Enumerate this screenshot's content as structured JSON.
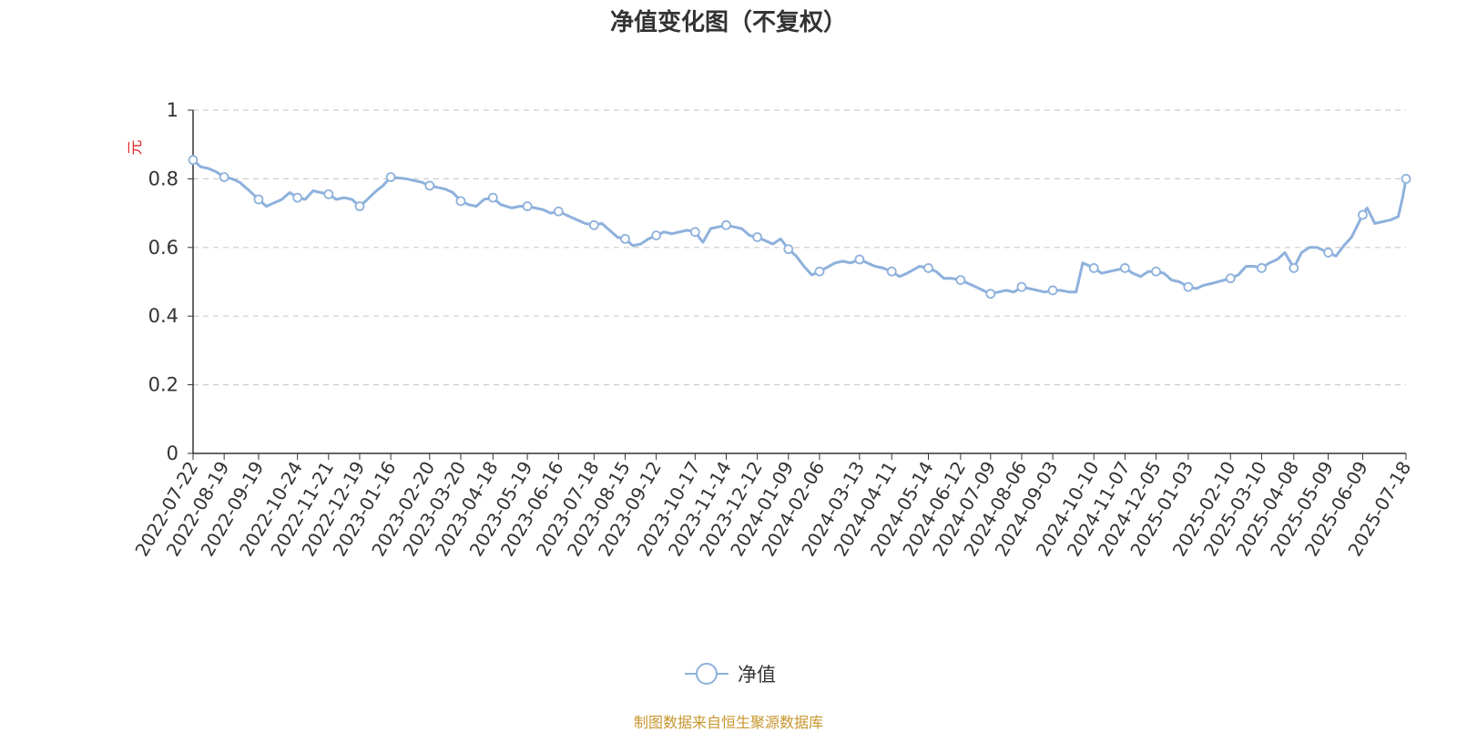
{
  "chart_data": {
    "type": "line",
    "title": "净值变化图（不复权）",
    "ylabel": "元",
    "ylim": [
      0,
      1
    ],
    "yticks": [
      0,
      0.2,
      0.4,
      0.6,
      0.8,
      1
    ],
    "ytick_labels": [
      "0",
      "0.2",
      "0.4",
      "0.6",
      "0.8",
      "1"
    ],
    "x_tick_labels": [
      "2022-07-22",
      "2022-08-19",
      "2022-09-19",
      "2022-10-24",
      "2022-11-21",
      "2022-12-19",
      "2023-01-16",
      "2023-02-20",
      "2023-03-20",
      "2023-04-18",
      "2023-05-19",
      "2023-06-16",
      "2023-07-18",
      "2023-08-15",
      "2023-09-12",
      "2023-10-17",
      "2023-11-14",
      "2023-12-12",
      "2024-01-09",
      "2024-02-06",
      "2024-03-13",
      "2024-04-11",
      "2024-05-14",
      "2024-06-12",
      "2024-07-09",
      "2024-08-06",
      "2024-09-03",
      "2024-10-10",
      "2024-11-07",
      "2024-12-05",
      "2025-01-03",
      "2025-02-10",
      "2025-03-10",
      "2025-04-08",
      "2025-05-09",
      "2025-06-09",
      "2025-07-18"
    ],
    "grid": true,
    "legend_position": "bottom-center",
    "line_color": "#8eb1dc",
    "series": [
      {
        "name": "净值",
        "points": [
          [
            "2022-07-22",
            0.855
          ],
          [
            "2022-07-29",
            0.835
          ],
          [
            "2022-08-05",
            0.83
          ],
          [
            "2022-08-12",
            0.82
          ],
          [
            "2022-08-19",
            0.805
          ],
          [
            "2022-08-26",
            0.8
          ],
          [
            "2022-09-02",
            0.79
          ],
          [
            "2022-09-09",
            0.77
          ],
          [
            "2022-09-19",
            0.74
          ],
          [
            "2022-09-26",
            0.72
          ],
          [
            "2022-10-10",
            0.74
          ],
          [
            "2022-10-17",
            0.76
          ],
          [
            "2022-10-24",
            0.745
          ],
          [
            "2022-10-31",
            0.74
          ],
          [
            "2022-11-07",
            0.765
          ],
          [
            "2022-11-14",
            0.76
          ],
          [
            "2022-11-21",
            0.755
          ],
          [
            "2022-11-28",
            0.74
          ],
          [
            "2022-12-05",
            0.745
          ],
          [
            "2022-12-12",
            0.74
          ],
          [
            "2022-12-19",
            0.72
          ],
          [
            "2022-12-26",
            0.74
          ],
          [
            "2023-01-03",
            0.765
          ],
          [
            "2023-01-09",
            0.78
          ],
          [
            "2023-01-16",
            0.805
          ],
          [
            "2023-01-30",
            0.8
          ],
          [
            "2023-02-06",
            0.795
          ],
          [
            "2023-02-13",
            0.79
          ],
          [
            "2023-02-20",
            0.78
          ],
          [
            "2023-02-27",
            0.775
          ],
          [
            "2023-03-06",
            0.77
          ],
          [
            "2023-03-13",
            0.76
          ],
          [
            "2023-03-20",
            0.735
          ],
          [
            "2023-03-27",
            0.725
          ],
          [
            "2023-04-03",
            0.72
          ],
          [
            "2023-04-10",
            0.74
          ],
          [
            "2023-04-18",
            0.745
          ],
          [
            "2023-04-25",
            0.725
          ],
          [
            "2023-05-05",
            0.715
          ],
          [
            "2023-05-12",
            0.72
          ],
          [
            "2023-05-19",
            0.72
          ],
          [
            "2023-05-26",
            0.715
          ],
          [
            "2023-06-02",
            0.71
          ],
          [
            "2023-06-09",
            0.7
          ],
          [
            "2023-06-16",
            0.705
          ],
          [
            "2023-06-26",
            0.69
          ],
          [
            "2023-07-03",
            0.68
          ],
          [
            "2023-07-10",
            0.67
          ],
          [
            "2023-07-18",
            0.665
          ],
          [
            "2023-07-25",
            0.67
          ],
          [
            "2023-08-01",
            0.65
          ],
          [
            "2023-08-08",
            0.63
          ],
          [
            "2023-08-15",
            0.625
          ],
          [
            "2023-08-22",
            0.605
          ],
          [
            "2023-08-29",
            0.61
          ],
          [
            "2023-09-05",
            0.625
          ],
          [
            "2023-09-12",
            0.635
          ],
          [
            "2023-09-19",
            0.645
          ],
          [
            "2023-09-26",
            0.64
          ],
          [
            "2023-10-10",
            0.65
          ],
          [
            "2023-10-17",
            0.645
          ],
          [
            "2023-10-24",
            0.615
          ],
          [
            "2023-10-31",
            0.655
          ],
          [
            "2023-11-07",
            0.66
          ],
          [
            "2023-11-14",
            0.665
          ],
          [
            "2023-11-21",
            0.66
          ],
          [
            "2023-11-28",
            0.655
          ],
          [
            "2023-12-05",
            0.635
          ],
          [
            "2023-12-12",
            0.63
          ],
          [
            "2023-12-19",
            0.62
          ],
          [
            "2023-12-26",
            0.61
          ],
          [
            "2024-01-02",
            0.625
          ],
          [
            "2024-01-09",
            0.595
          ],
          [
            "2024-01-16",
            0.575
          ],
          [
            "2024-01-23",
            0.545
          ],
          [
            "2024-01-30",
            0.52
          ],
          [
            "2024-02-06",
            0.53
          ],
          [
            "2024-02-20",
            0.555
          ],
          [
            "2024-02-27",
            0.56
          ],
          [
            "2024-03-05",
            0.555
          ],
          [
            "2024-03-13",
            0.565
          ],
          [
            "2024-03-20",
            0.555
          ],
          [
            "2024-03-27",
            0.545
          ],
          [
            "2024-04-03",
            0.54
          ],
          [
            "2024-04-11",
            0.53
          ],
          [
            "2024-04-18",
            0.515
          ],
          [
            "2024-04-25",
            0.525
          ],
          [
            "2024-05-06",
            0.545
          ],
          [
            "2024-05-14",
            0.54
          ],
          [
            "2024-05-21",
            0.53
          ],
          [
            "2024-05-28",
            0.51
          ],
          [
            "2024-06-04",
            0.51
          ],
          [
            "2024-06-12",
            0.505
          ],
          [
            "2024-06-19",
            0.495
          ],
          [
            "2024-06-26",
            0.485
          ],
          [
            "2024-07-02",
            0.475
          ],
          [
            "2024-07-09",
            0.465
          ],
          [
            "2024-07-16",
            0.47
          ],
          [
            "2024-07-23",
            0.475
          ],
          [
            "2024-07-30",
            0.47
          ],
          [
            "2024-08-06",
            0.485
          ],
          [
            "2024-08-13",
            0.48
          ],
          [
            "2024-08-20",
            0.475
          ],
          [
            "2024-08-27",
            0.47
          ],
          [
            "2024-09-03",
            0.475
          ],
          [
            "2024-09-10",
            0.475
          ],
          [
            "2024-09-18",
            0.47
          ],
          [
            "2024-09-24",
            0.47
          ],
          [
            "2024-09-30",
            0.555
          ],
          [
            "2024-10-10",
            0.54
          ],
          [
            "2024-10-17",
            0.525
          ],
          [
            "2024-10-24",
            0.53
          ],
          [
            "2024-10-31",
            0.535
          ],
          [
            "2024-11-07",
            0.54
          ],
          [
            "2024-11-14",
            0.525
          ],
          [
            "2024-11-21",
            0.515
          ],
          [
            "2024-11-28",
            0.53
          ],
          [
            "2024-12-05",
            0.53
          ],
          [
            "2024-12-12",
            0.525
          ],
          [
            "2024-12-19",
            0.505
          ],
          [
            "2024-12-26",
            0.5
          ],
          [
            "2025-01-03",
            0.485
          ],
          [
            "2025-01-10",
            0.48
          ],
          [
            "2025-01-17",
            0.49
          ],
          [
            "2025-01-24",
            0.495
          ],
          [
            "2025-02-10",
            0.51
          ],
          [
            "2025-02-17",
            0.52
          ],
          [
            "2025-02-24",
            0.545
          ],
          [
            "2025-03-03",
            0.545
          ],
          [
            "2025-03-10",
            0.54
          ],
          [
            "2025-03-17",
            0.555
          ],
          [
            "2025-03-24",
            0.565
          ],
          [
            "2025-03-31",
            0.585
          ],
          [
            "2025-04-08",
            0.54
          ],
          [
            "2025-04-15",
            0.585
          ],
          [
            "2025-04-22",
            0.6
          ],
          [
            "2025-04-29",
            0.6
          ],
          [
            "2025-05-09",
            0.585
          ],
          [
            "2025-05-16",
            0.575
          ],
          [
            "2025-05-23",
            0.605
          ],
          [
            "2025-05-30",
            0.63
          ],
          [
            "2025-06-09",
            0.695
          ],
          [
            "2025-06-13",
            0.715
          ],
          [
            "2025-06-20",
            0.67
          ],
          [
            "2025-06-27",
            0.675
          ],
          [
            "2025-07-04",
            0.68
          ],
          [
            "2025-07-11",
            0.69
          ],
          [
            "2025-07-15",
            0.745
          ],
          [
            "2025-07-18",
            0.8
          ]
        ]
      }
    ]
  },
  "legend": {
    "label": "净值"
  },
  "source_note": "制图数据来自恒生聚源数据库"
}
